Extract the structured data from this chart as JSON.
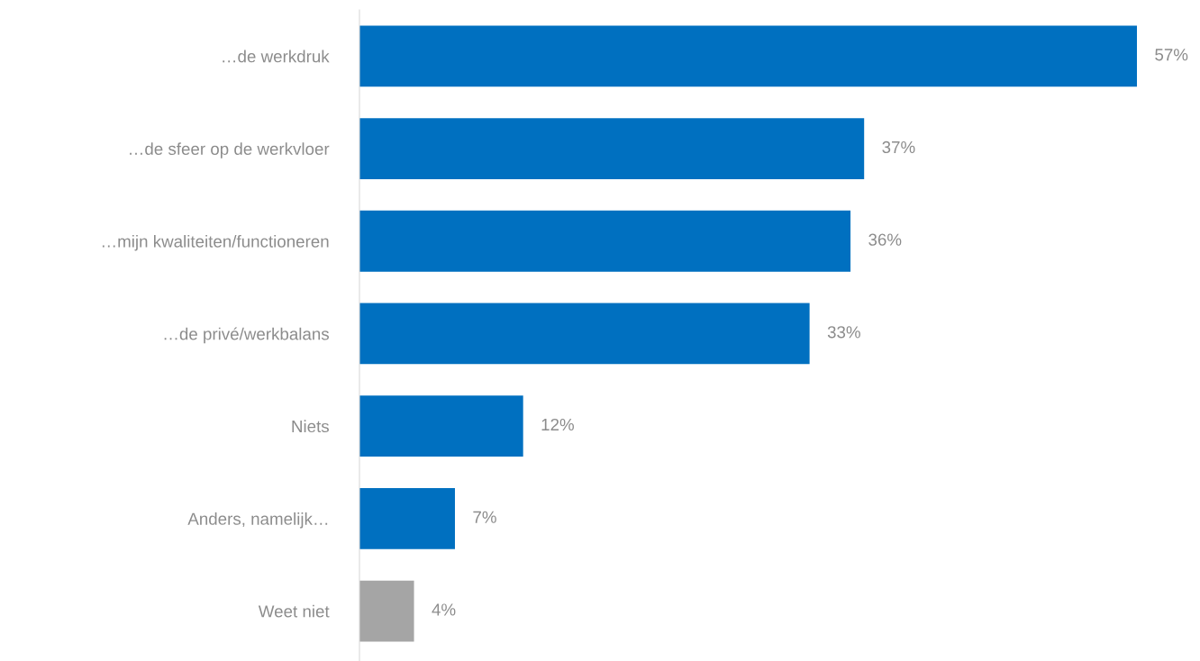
{
  "chart_data": {
    "type": "bar",
    "orientation": "horizontal",
    "categories": [
      "…de werkdruk",
      "…de sfeer op de werkvloer",
      "…mijn kwaliteiten/functioneren",
      "…de privé/werkbalans",
      "Niets",
      "Anders, namelijk…",
      "Weet niet"
    ],
    "values": [
      57,
      37,
      36,
      33,
      12,
      7,
      4
    ],
    "colors": [
      "#0070c0",
      "#0070c0",
      "#0070c0",
      "#0070c0",
      "#0070c0",
      "#0070c0",
      "#a5a5a5"
    ],
    "value_labels": [
      "57%",
      "37%",
      "36%",
      "33%",
      "12%",
      "7%",
      "4%"
    ],
    "grid": false,
    "legend": false
  }
}
